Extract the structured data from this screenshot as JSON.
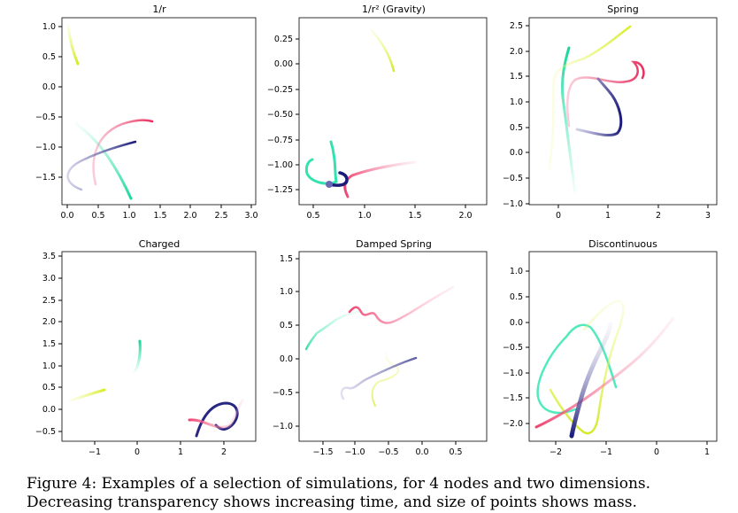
{
  "caption": "Figure 4: Examples of a selection of simulations, for 4 nodes and two dimensions. Decreasing transparency shows increasing time, and size of points shows mass.",
  "colors": {
    "yellow": "#e6f75a",
    "teal": "#3fe8b6",
    "pink": "#f0386b",
    "navy": "#1b1b7a"
  },
  "chart_data": [
    {
      "type": "line",
      "title": "1/r",
      "xticks": [
        "0.0",
        "0.5",
        "1.0",
        "1.5",
        "2.0",
        "2.5",
        "3.0"
      ],
      "yticks": [
        "1.0",
        "0.5",
        "0.0",
        "−0.5",
        "−1.0",
        "−1.5"
      ]
    },
    {
      "type": "line",
      "title": "1/r² (Gravity)",
      "xticks": [
        "0.5",
        "1.0",
        "1.5",
        "2.0"
      ],
      "yticks": [
        "0.25",
        "0.00",
        "−0.25",
        "−0.50",
        "−0.75",
        "−1.00",
        "−1.25"
      ]
    },
    {
      "type": "line",
      "title": "Spring",
      "xticks": [
        "0",
        "1",
        "2",
        "3"
      ],
      "yticks": [
        "2.5",
        "2.0",
        "1.5",
        "1.0",
        "0.5",
        "0.0",
        "−0.5",
        "−1.0"
      ]
    },
    {
      "type": "line",
      "title": "Charged",
      "xticks": [
        "−1",
        "0",
        "1",
        "2"
      ],
      "yticks": [
        "3.5",
        "3.0",
        "2.5",
        "2.0",
        "1.5",
        "1.0",
        "0.5",
        "0.0",
        "−0.5"
      ]
    },
    {
      "type": "line",
      "title": "Damped Spring",
      "xticks": [
        "−1.5",
        "−1.0",
        "−0.5",
        "0.0",
        "0.5"
      ],
      "yticks": [
        "1.5",
        "1.0",
        "0.5",
        "0.0",
        "−0.5",
        "−1.0"
      ]
    },
    {
      "type": "line",
      "title": "Discontinuous",
      "xticks": [
        "−2",
        "−1",
        "0",
        "1"
      ],
      "yticks": [
        "1.0",
        "0.5",
        "0.0",
        "−0.5",
        "−1.0",
        "−1.5",
        "−2.0"
      ]
    }
  ]
}
